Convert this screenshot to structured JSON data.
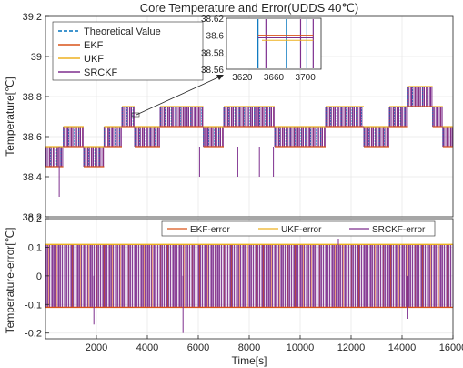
{
  "chart_data": [
    {
      "type": "line",
      "title": "Core Temperature and Error(UDDS 40℃)",
      "xlabel": "",
      "ylabel": "Temperature[℃]",
      "xlim": [
        0,
        16000
      ],
      "ylim": [
        38.2,
        39.2
      ],
      "yticks": [
        "38.2",
        "38.4",
        "38.6",
        "38.8",
        "39",
        "39.2"
      ],
      "grid": true,
      "legend": "top-left",
      "series": [
        {
          "name": "Theoretical Value",
          "color": "#0072BD",
          "style": "dashed"
        },
        {
          "name": "EKF",
          "color": "#D95319",
          "style": "solid"
        },
        {
          "name": "UKF",
          "color": "#EDB120",
          "style": "solid"
        },
        {
          "name": "SRCKF",
          "color": "#7E2F8E",
          "style": "solid"
        }
      ],
      "levels": [
        {
          "x0": 0,
          "x1": 700,
          "y": 38.5
        },
        {
          "x0": 700,
          "x1": 1500,
          "y": 38.6
        },
        {
          "x0": 1500,
          "x1": 2300,
          "y": 38.5
        },
        {
          "x0": 2300,
          "x1": 3000,
          "y": 38.6
        },
        {
          "x0": 3000,
          "x1": 3500,
          "y": 38.7
        },
        {
          "x0": 3500,
          "x1": 4500,
          "y": 38.6
        },
        {
          "x0": 4500,
          "x1": 6200,
          "y": 38.7
        },
        {
          "x0": 6200,
          "x1": 7000,
          "y": 38.6
        },
        {
          "x0": 7000,
          "x1": 9000,
          "y": 38.7
        },
        {
          "x0": 9000,
          "x1": 11000,
          "y": 38.6
        },
        {
          "x0": 11000,
          "x1": 12500,
          "y": 38.7
        },
        {
          "x0": 12500,
          "x1": 13500,
          "y": 38.6
        },
        {
          "x0": 13500,
          "x1": 14200,
          "y": 38.7
        },
        {
          "x0": 14200,
          "x1": 15200,
          "y": 38.8
        },
        {
          "x0": 15200,
          "x1": 15600,
          "y": 38.7
        },
        {
          "x0": 15600,
          "x1": 16000,
          "y": 38.6
        }
      ],
      "spikes": [
        {
          "x": 540,
          "y": 38.3
        },
        {
          "x": 6050,
          "y": 38.4
        },
        {
          "x": 7550,
          "y": 38.4
        },
        {
          "x": 8400,
          "y": 38.4
        },
        {
          "x": 8950,
          "y": 38.4
        }
      ],
      "inset": {
        "xlim": [
          3600,
          3720
        ],
        "ylim": [
          38.56,
          38.62
        ],
        "xticks": [
          "3620",
          "3660",
          "3700"
        ],
        "yticks": [
          "38.56",
          "38.58",
          "38.6",
          "38.62"
        ]
      }
    },
    {
      "type": "line",
      "title": "",
      "xlabel": "Time[s]",
      "ylabel": "Temperature-error[℃]",
      "xlim": [
        0,
        16000
      ],
      "ylim": [
        -0.22,
        0.2
      ],
      "xticks": [
        "2000",
        "4000",
        "6000",
        "8000",
        "10000",
        "12000",
        "14000",
        "16000"
      ],
      "yticks": [
        "-0.2",
        "-0.1",
        "0",
        "0.1",
        "0.2"
      ],
      "grid": true,
      "legend": "top",
      "series": [
        {
          "name": "EKF-error",
          "color": "#D95319"
        },
        {
          "name": "UKF-error",
          "color": "#EDB120"
        },
        {
          "name": "SRCKF-error",
          "color": "#7E2F8E"
        }
      ],
      "band": [
        -0.11,
        0.11
      ],
      "spikes": [
        {
          "x": 1900,
          "y": -0.17
        },
        {
          "x": 5400,
          "y": -0.2
        },
        {
          "x": 11500,
          "y": 0.13
        },
        {
          "x": 14200,
          "y": -0.15
        }
      ]
    }
  ]
}
